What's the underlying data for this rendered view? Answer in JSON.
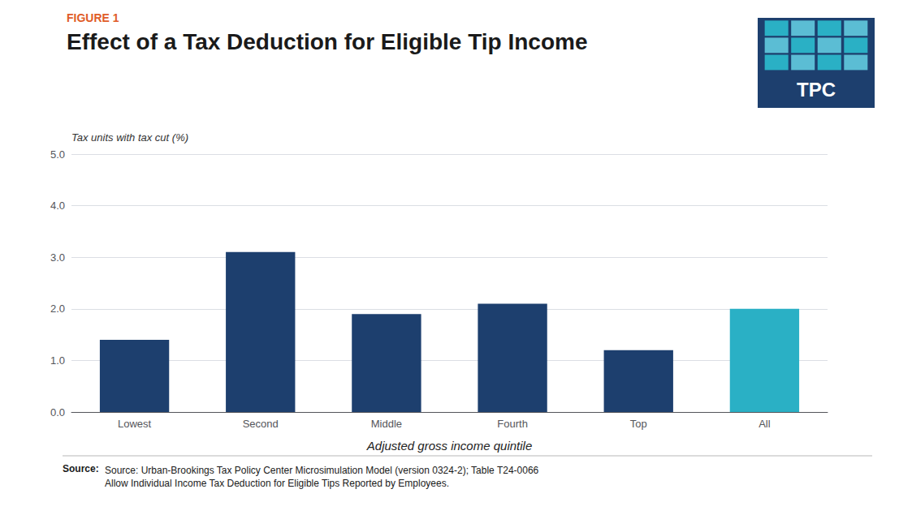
{
  "chart_data": {
    "type": "bar",
    "title": "Effect of a Tax Deduction for Eligible Tip Income",
    "ylabel": "Tax units with tax cut (%)",
    "xlabel": "Adjusted gross income quintile",
    "annotations": [
      "FIGURE 1",
      "Source:",
      "Source: Urban-Brookings Tax Policy Center Microsimulation Model (version 0324-2); Table T24-0066\nAllow Individual Income Tax Deduction for Eligible Tips Reported by Employees.",
      "TPC"
    ],
    "categories": [
      "Lowest",
      "Second",
      "Middle",
      "Fourth",
      "Top",
      "All"
    ],
    "values": [
      1.4,
      3.1,
      1.9,
      2.1,
      1.2,
      2.0
    ],
    "colors": [
      "#1d3f6e",
      "#1d3f6e",
      "#1d3f6e",
      "#1d3f6e",
      "#1d3f6e",
      "#2ab0c5"
    ],
    "ylim": [
      0,
      5.0
    ],
    "yticks": [
      {
        "value": 0.0,
        "label": "0.0"
      },
      {
        "value": 1.0,
        "label": "1.0"
      },
      {
        "value": 2.0,
        "label": "2.0"
      },
      {
        "value": 3.0,
        "label": "3.0"
      },
      {
        "value": 4.0,
        "label": "4.0"
      },
      {
        "value": 5.0,
        "label": "5.0"
      }
    ],
    "grid": true
  }
}
